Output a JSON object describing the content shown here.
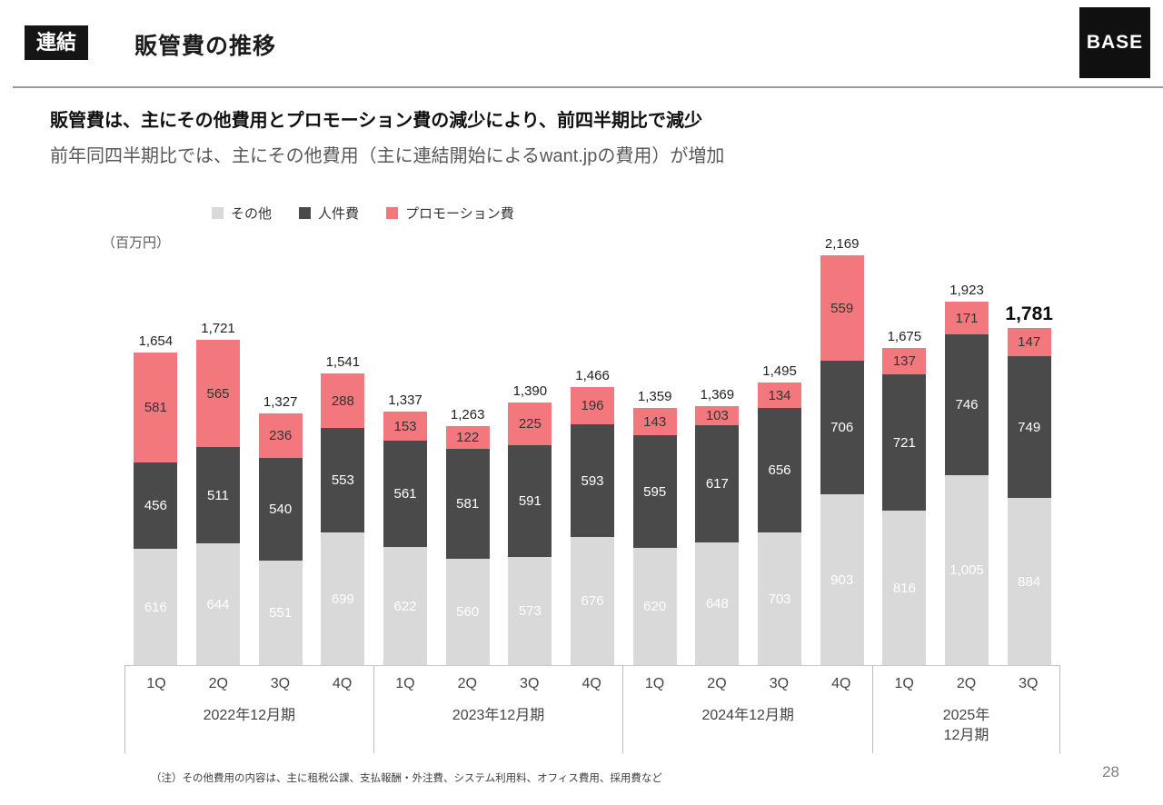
{
  "header": {
    "badge": "連結",
    "title": "販管費の推移",
    "logo": "BASE"
  },
  "headline": {
    "line1": "販管費は、主にその他費用とプロモーション費の減少により、前四半期比で減少",
    "line2": "前年同四半期比では、主にその他費用（主に連結開始によるwant.jpの費用）が増加"
  },
  "chart_data": {
    "type": "bar",
    "stacked": true,
    "title": "販管費の推移",
    "unit_label": "（百万円）",
    "ylim": [
      0,
      2200
    ],
    "colors": {
      "sonota": "#d9d9d9",
      "jinkenhi": "#4a4a4a",
      "promo": "#f3787d"
    },
    "legend": [
      {
        "key": "sonota",
        "label": "その他"
      },
      {
        "key": "jinkenhi",
        "label": "人件費"
      },
      {
        "key": "promo",
        "label": "プロモーション費"
      }
    ],
    "stack_order_top_to_bottom": [
      "promo",
      "jinkenhi",
      "sonota"
    ],
    "groups": [
      {
        "label_lines": [
          "2022年12月期"
        ],
        "bars": [
          {
            "quarter": "1Q",
            "total": 1654,
            "sonota": 616,
            "jinkenhi": 456,
            "promo": 581
          },
          {
            "quarter": "2Q",
            "total": 1721,
            "sonota": 644,
            "jinkenhi": 511,
            "promo": 565
          },
          {
            "quarter": "3Q",
            "total": 1327,
            "sonota": 551,
            "jinkenhi": 540,
            "promo": 236
          },
          {
            "quarter": "4Q",
            "total": 1541,
            "sonota": 699,
            "jinkenhi": 553,
            "promo": 288
          }
        ]
      },
      {
        "label_lines": [
          "2023年12月期"
        ],
        "bars": [
          {
            "quarter": "1Q",
            "total": 1337,
            "sonota": 622,
            "jinkenhi": 561,
            "promo": 153
          },
          {
            "quarter": "2Q",
            "total": 1263,
            "sonota": 560,
            "jinkenhi": 581,
            "promo": 122
          },
          {
            "quarter": "3Q",
            "total": 1390,
            "sonota": 573,
            "jinkenhi": 591,
            "promo": 225
          },
          {
            "quarter": "4Q",
            "total": 1466,
            "sonota": 676,
            "jinkenhi": 593,
            "promo": 196
          }
        ]
      },
      {
        "label_lines": [
          "2024年12月期"
        ],
        "bars": [
          {
            "quarter": "1Q",
            "total": 1359,
            "sonota": 620,
            "jinkenhi": 595,
            "promo": 143
          },
          {
            "quarter": "2Q",
            "total": 1369,
            "sonota": 648,
            "jinkenhi": 617,
            "promo": 103
          },
          {
            "quarter": "3Q",
            "total": 1495,
            "sonota": 703,
            "jinkenhi": 656,
            "promo": 134
          },
          {
            "quarter": "4Q",
            "total": 2169,
            "sonota": 903,
            "jinkenhi": 706,
            "promo": 559
          }
        ]
      },
      {
        "label_lines": [
          "2025年",
          "12月期"
        ],
        "bars": [
          {
            "quarter": "1Q",
            "total": 1675,
            "sonota": 816,
            "jinkenhi": 721,
            "promo": 137
          },
          {
            "quarter": "2Q",
            "total": 1923,
            "sonota": 1005,
            "jinkenhi": 746,
            "promo": 171
          },
          {
            "quarter": "3Q",
            "total": 1781,
            "sonota": 884,
            "jinkenhi": 749,
            "promo": 147,
            "emphasis": true
          }
        ]
      }
    ]
  },
  "footnote": "（注）その他費用の内容は、主に租税公課、支払報酬・外注費、システム利用料、オフィス費用、採用費など",
  "page_number": "28"
}
